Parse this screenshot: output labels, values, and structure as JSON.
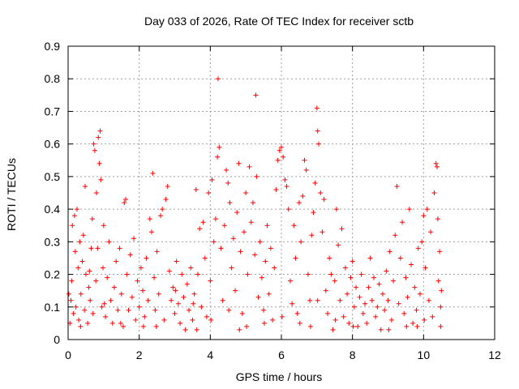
{
  "chart_data": {
    "type": "scatter",
    "title": "Day 033 of 2026, Rate Of TEC Index for receiver sctb",
    "xlabel": "GPS time / hours",
    "ylabel": "ROTI / TECUs",
    "xlim": [
      0,
      12
    ],
    "ylim": [
      0,
      0.9
    ],
    "xticks": [
      "0",
      "2",
      "4",
      "6",
      "8",
      "10",
      "12"
    ],
    "yticks": [
      "0",
      "0.1",
      "0.2",
      "0.3",
      "0.4",
      "0.5",
      "0.6",
      "0.7",
      "0.8",
      "0.9"
    ],
    "grid": true,
    "marker": "+",
    "color": "#ff0000",
    "series": [
      {
        "points": [
          [
            0.05,
            0.05
          ],
          [
            0.08,
            0.12
          ],
          [
            0.1,
            0.18
          ],
          [
            0.12,
            0.35
          ],
          [
            0.15,
            0.08
          ],
          [
            0.18,
            0.38
          ],
          [
            0.2,
            0.27
          ],
          [
            0.22,
            0.1
          ],
          [
            0.25,
            0.4
          ],
          [
            0.28,
            0.22
          ],
          [
            0.3,
            0.06
          ],
          [
            0.33,
            0.3
          ],
          [
            0.36,
            0.14
          ],
          [
            0.4,
            0.24
          ],
          [
            0.43,
            0.32
          ],
          [
            0.46,
            0.09
          ],
          [
            0.48,
            0.47
          ],
          [
            0.5,
            0.2
          ],
          [
            0.55,
            0.05
          ],
          [
            0.58,
            0.16
          ],
          [
            0.62,
            0.12
          ],
          [
            0.65,
            0.28
          ],
          [
            0.68,
            0.37
          ],
          [
            0.7,
            0.08
          ],
          [
            0.72,
            0.6
          ],
          [
            0.75,
            0.58
          ],
          [
            0.78,
            0.18
          ],
          [
            0.8,
            0.45
          ],
          [
            0.83,
            0.28
          ],
          [
            0.85,
            0.62
          ],
          [
            0.88,
            0.54
          ],
          [
            0.9,
            0.64
          ],
          [
            0.92,
            0.49
          ],
          [
            0.95,
            0.1
          ],
          [
            0.98,
            0.22
          ],
          [
            1.0,
            0.35
          ],
          [
            1.05,
            0.07
          ],
          [
            1.1,
            0.19
          ],
          [
            1.15,
            0.3
          ],
          [
            1.2,
            0.12
          ],
          [
            1.25,
            0.05
          ],
          [
            1.3,
            0.16
          ],
          [
            1.35,
            0.24
          ],
          [
            1.4,
            0.09
          ],
          [
            1.45,
            0.28
          ],
          [
            1.5,
            0.14
          ],
          [
            1.55,
            0.04
          ],
          [
            1.58,
            0.42
          ],
          [
            1.62,
            0.43
          ],
          [
            1.65,
            0.2
          ],
          [
            1.7,
            0.09
          ],
          [
            1.75,
            0.26
          ],
          [
            1.8,
            0.13
          ],
          [
            1.85,
            0.31
          ],
          [
            1.9,
            0.06
          ],
          [
            1.95,
            0.18
          ],
          [
            2.0,
            0.1
          ],
          [
            2.05,
            0.22
          ],
          [
            2.1,
            0.15
          ],
          [
            2.15,
            0.07
          ],
          [
            2.2,
            0.25
          ],
          [
            2.25,
            0.12
          ],
          [
            2.3,
            0.37
          ],
          [
            2.35,
            0.33
          ],
          [
            2.38,
            0.51
          ],
          [
            2.42,
            0.19
          ],
          [
            2.45,
            0.09
          ],
          [
            2.5,
            0.27
          ],
          [
            2.55,
            0.14
          ],
          [
            2.6,
            0.38
          ],
          [
            2.65,
            0.4
          ],
          [
            2.7,
            0.06
          ],
          [
            2.75,
            0.43
          ],
          [
            2.8,
            0.47
          ],
          [
            2.85,
            0.21
          ],
          [
            2.9,
            0.12
          ],
          [
            2.95,
            0.16
          ],
          [
            3.0,
            0.08
          ],
          [
            3.05,
            0.24
          ],
          [
            3.1,
            0.11
          ],
          [
            3.15,
            0.05
          ],
          [
            3.2,
            0.2
          ],
          [
            3.25,
            0.13
          ],
          [
            3.3,
            0.03
          ],
          [
            3.35,
            0.17
          ],
          [
            3.4,
            0.09
          ],
          [
            3.45,
            0.22
          ],
          [
            3.5,
            0.06
          ],
          [
            3.55,
            0.14
          ],
          [
            3.6,
            0.46
          ],
          [
            3.65,
            0.2
          ],
          [
            3.7,
            0.34
          ],
          [
            3.75,
            0.1
          ],
          [
            3.8,
            0.36
          ],
          [
            3.85,
            0.25
          ],
          [
            3.9,
            0.07
          ],
          [
            3.95,
            0.45
          ],
          [
            4.0,
            0.18
          ],
          [
            4.05,
            0.49
          ],
          [
            4.1,
            0.3
          ],
          [
            4.15,
            0.37
          ],
          [
            4.2,
            0.56
          ],
          [
            4.22,
            0.8
          ],
          [
            4.25,
            0.59
          ],
          [
            4.3,
            0.28
          ],
          [
            4.35,
            0.12
          ],
          [
            4.4,
            0.35
          ],
          [
            4.45,
            0.52
          ],
          [
            4.5,
            0.48
          ],
          [
            4.55,
            0.42
          ],
          [
            4.6,
            0.22
          ],
          [
            4.65,
            0.31
          ],
          [
            4.7,
            0.15
          ],
          [
            4.75,
            0.39
          ],
          [
            4.8,
            0.54
          ],
          [
            4.85,
            0.27
          ],
          [
            4.9,
            0.08
          ],
          [
            4.95,
            0.33
          ],
          [
            5.0,
            0.45
          ],
          [
            5.05,
            0.2
          ],
          [
            5.1,
            0.53
          ],
          [
            5.15,
            0.36
          ],
          [
            5.2,
            0.42
          ],
          [
            5.25,
            0.26
          ],
          [
            5.28,
            0.75
          ],
          [
            5.3,
            0.5
          ],
          [
            5.35,
            0.13
          ],
          [
            5.4,
            0.3
          ],
          [
            5.45,
            0.19
          ],
          [
            5.5,
            0.09
          ],
          [
            5.55,
            0.24
          ],
          [
            5.6,
            0.35
          ],
          [
            5.65,
            0.14
          ],
          [
            5.7,
            0.28
          ],
          [
            5.75,
            0.06
          ],
          [
            5.8,
            0.22
          ],
          [
            5.85,
            0.46
          ],
          [
            5.9,
            0.55
          ],
          [
            5.95,
            0.58
          ],
          [
            6.0,
            0.59
          ],
          [
            6.05,
            0.56
          ],
          [
            6.1,
            0.49
          ],
          [
            6.15,
            0.47
          ],
          [
            6.2,
            0.4
          ],
          [
            6.25,
            0.18
          ],
          [
            6.3,
            0.11
          ],
          [
            6.35,
            0.35
          ],
          [
            6.4,
            0.25
          ],
          [
            6.45,
            0.08
          ],
          [
            6.5,
            0.42
          ],
          [
            6.55,
            0.3
          ],
          [
            6.6,
            0.44
          ],
          [
            6.65,
            0.55
          ],
          [
            6.7,
            0.52
          ],
          [
            6.75,
            0.2
          ],
          [
            6.8,
            0.12
          ],
          [
            6.85,
            0.32
          ],
          [
            6.9,
            0.39
          ],
          [
            6.95,
            0.48
          ],
          [
            7.0,
            0.71
          ],
          [
            7.02,
            0.64
          ],
          [
            7.05,
            0.6
          ],
          [
            7.1,
            0.45
          ],
          [
            7.15,
            0.33
          ],
          [
            7.2,
            0.43
          ],
          [
            7.25,
            0.15
          ],
          [
            7.3,
            0.08
          ],
          [
            7.35,
            0.25
          ],
          [
            7.4,
            0.2
          ],
          [
            7.45,
            0.03
          ],
          [
            7.5,
            0.18
          ],
          [
            7.55,
            0.4
          ],
          [
            7.6,
            0.29
          ],
          [
            7.65,
            0.12
          ],
          [
            7.7,
            0.34
          ],
          [
            7.75,
            0.07
          ],
          [
            7.8,
            0.22
          ],
          [
            7.85,
            0.14
          ],
          [
            7.9,
            0.05
          ],
          [
            7.95,
            0.19
          ],
          [
            8.0,
            0.24
          ],
          [
            8.05,
            0.1
          ],
          [
            8.1,
            0.16
          ],
          [
            8.15,
            0.04
          ],
          [
            8.2,
            0.13
          ],
          [
            8.25,
            0.2
          ],
          [
            8.3,
            0.08
          ],
          [
            8.35,
            0.11
          ],
          [
            8.4,
            0.05
          ],
          [
            8.45,
            0.16
          ],
          [
            8.5,
            0.25
          ],
          [
            8.55,
            0.12
          ],
          [
            8.6,
            0.19
          ],
          [
            8.65,
            0.07
          ],
          [
            8.7,
            0.1
          ],
          [
            8.75,
            0.17
          ],
          [
            8.8,
            0.03
          ],
          [
            8.85,
            0.14
          ],
          [
            8.9,
            0.09
          ],
          [
            8.95,
            0.21
          ],
          [
            9.0,
            0.12
          ],
          [
            9.05,
            0.27
          ],
          [
            9.1,
            0.06
          ],
          [
            9.15,
            0.18
          ],
          [
            9.2,
            0.32
          ],
          [
            9.25,
            0.47
          ],
          [
            9.3,
            0.11
          ],
          [
            9.35,
            0.25
          ],
          [
            9.4,
            0.36
          ],
          [
            9.45,
            0.08
          ],
          [
            9.5,
            0.19
          ],
          [
            9.55,
            0.13
          ],
          [
            9.6,
            0.4
          ],
          [
            9.65,
            0.23
          ],
          [
            9.7,
            0.05
          ],
          [
            9.75,
            0.16
          ],
          [
            9.8,
            0.09
          ],
          [
            9.85,
            0.28
          ],
          [
            9.9,
            0.14
          ],
          [
            9.95,
            0.3
          ],
          [
            10.0,
            0.38
          ],
          [
            10.05,
            0.22
          ],
          [
            10.1,
            0.4
          ],
          [
            10.15,
            0.12
          ],
          [
            10.2,
            0.33
          ],
          [
            10.25,
            0.07
          ],
          [
            10.3,
            0.45
          ],
          [
            10.35,
            0.54
          ],
          [
            10.38,
            0.53
          ],
          [
            10.4,
            0.37
          ],
          [
            10.42,
            0.18
          ],
          [
            10.45,
            0.27
          ],
          [
            10.48,
            0.1
          ],
          [
            10.5,
            0.15
          ],
          [
            0.02,
            0.14
          ],
          [
            0.35,
            0.04
          ],
          [
            0.6,
            0.21
          ],
          [
            1.02,
            0.11
          ],
          [
            1.48,
            0.05
          ],
          [
            2.48,
            0.04
          ],
          [
            3.02,
            0.15
          ],
          [
            3.52,
            0.11
          ],
          [
            4.02,
            0.06
          ],
          [
            4.52,
            0.09
          ],
          [
            5.02,
            0.04
          ],
          [
            5.52,
            0.05
          ],
          [
            6.02,
            0.07
          ],
          [
            6.52,
            0.05
          ],
          [
            7.02,
            0.12
          ],
          [
            7.52,
            0.06
          ],
          [
            8.02,
            0.04
          ],
          [
            9.02,
            0.03
          ],
          [
            9.52,
            0.04
          ],
          [
            10.02,
            0.06
          ],
          [
            10.48,
            0.04
          ],
          [
            2.12,
            0.04
          ],
          [
            3.62,
            0.03
          ],
          [
            4.82,
            0.03
          ],
          [
            6.82,
            0.04
          ],
          [
            9.82,
            0.04
          ]
        ]
      }
    ]
  }
}
